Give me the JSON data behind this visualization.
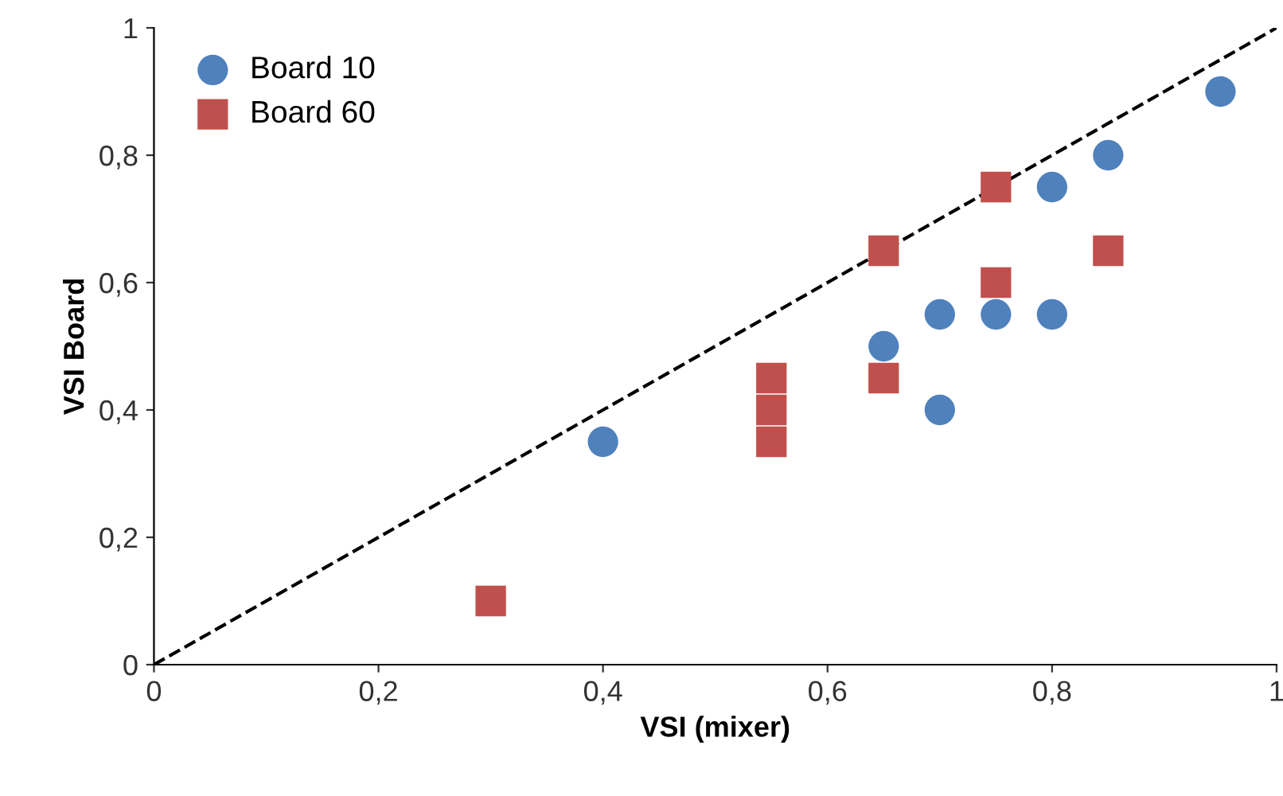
{
  "chart_data": {
    "type": "scatter",
    "xlabel": "VSI (mixer)",
    "ylabel": "VSI Board",
    "xlim": [
      0,
      1
    ],
    "ylim": [
      0,
      1
    ],
    "xticks": [
      0,
      {
        "value": 0.2,
        "label": "0,2"
      },
      {
        "value": 0.4,
        "label": "0,4"
      },
      {
        "value": 0.6,
        "label": "0,6"
      },
      {
        "value": 0.8,
        "label": "0,8"
      },
      1
    ],
    "yticks": [
      0,
      {
        "value": 0.2,
        "label": "0,2"
      },
      {
        "value": 0.4,
        "label": "0,4"
      },
      {
        "value": 0.6,
        "label": "0,6"
      },
      {
        "value": 0.8,
        "label": "0,8"
      },
      1
    ],
    "grid": false,
    "legend": "top left",
    "series": [
      {
        "name": "Board 10",
        "color": "#4f81bd",
        "marker": "circle",
        "x": [
          0.4,
          0.65,
          0.7,
          0.75,
          0.8,
          0.7,
          0.8,
          0.85,
          0.95
        ],
        "values": [
          0.35,
          0.5,
          0.55,
          0.55,
          0.55,
          0.4,
          0.75,
          0.8,
          0.9
        ]
      },
      {
        "name": "Board 60",
        "color": "#c0504d",
        "marker": "square",
        "x": [
          0.3,
          0.55,
          0.55,
          0.55,
          0.65,
          0.65,
          0.75,
          0.75,
          0.85
        ],
        "values": [
          0.1,
          0.35,
          0.4,
          0.45,
          0.45,
          0.65,
          0.6,
          0.75,
          0.65
        ]
      },
      {
        "type": "line",
        "color": "#000000",
        "line_style": "dashed",
        "marker": "none",
        "x": [
          0,
          1
        ],
        "values": [
          0,
          1
        ]
      }
    ]
  }
}
